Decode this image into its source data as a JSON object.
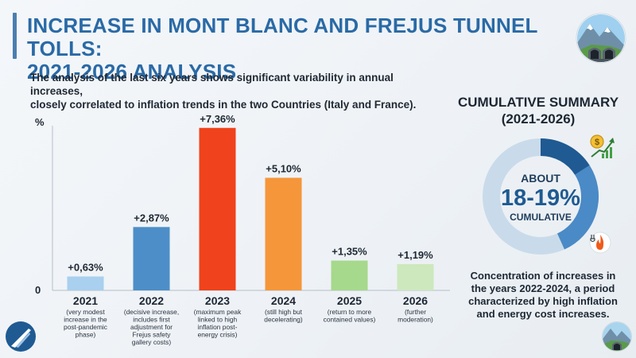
{
  "header": {
    "title_line1": "INCREASE IN MONT BLANC AND FREJUS TUNNEL TOLLS:",
    "title_line2": "2021-2026 ANALYSIS",
    "subtitle_line1": "The analysis of the last six years shows significant variability in annual increases,",
    "subtitle_line2": "closely correlated to inflation trends in the two Countries (Italy and France)."
  },
  "chart_data": {
    "type": "bar",
    "title": "",
    "xlabel": "",
    "ylabel": "%",
    "ylim": [
      0,
      8
    ],
    "y_tick_labels": [
      "0"
    ],
    "grid": false,
    "categories": [
      "2021",
      "2022",
      "2023",
      "2024",
      "2025",
      "2026"
    ],
    "values": [
      0.63,
      2.87,
      7.36,
      5.1,
      1.35,
      1.19
    ],
    "value_labels": [
      "+0,63%",
      "+2,87%",
      "+7,36%",
      "+5,10%",
      "+1,35%",
      "+1,19%"
    ],
    "bar_colors": [
      "#a9d0ee",
      "#4d8ec8",
      "#f0421c",
      "#f5963a",
      "#a6d98c",
      "#cde8bd"
    ],
    "annotations": [
      [
        "(very modest",
        "increase in the",
        "post-pandemic",
        "phase)"
      ],
      [
        "(decisive increase,",
        "includes first",
        "adjustment for",
        "Frejus safety",
        "gallery costs)"
      ],
      [
        "(maximum peak",
        "linked to high",
        "inflation post-",
        "energy crisis)"
      ],
      [
        "(still high but",
        "decelerating)"
      ],
      [
        "(return to more",
        "contained values)"
      ],
      [
        "(further",
        "moderation)"
      ]
    ]
  },
  "summary": {
    "title_line1": "CUMULATIVE SUMMARY",
    "title_line2": "(2021-2026)",
    "about": "ABOUT",
    "value": "18-19%",
    "cumulative": "CUMULATIVE",
    "conclusion_line1": "Concentration of increases in",
    "conclusion_line2": "the years 2022-2024, a period",
    "conclusion_line3": "characterized by high inflation",
    "conclusion_line4": "and energy cost increases."
  },
  "colors": {
    "title": "#2a6aa6",
    "accent_bar": "#4a7fb0",
    "donut_dark": "#1f5a92",
    "donut_mid": "#4a8ac6",
    "donut_light": "#c9dbea"
  },
  "icons": {
    "top_badge": "mountain-tunnel-icon",
    "bottom_badge": "mountain-tunnel-icon",
    "logo": "road-logo-icon",
    "money": "money-growth-icon",
    "energy": "energy-flame-icon"
  }
}
